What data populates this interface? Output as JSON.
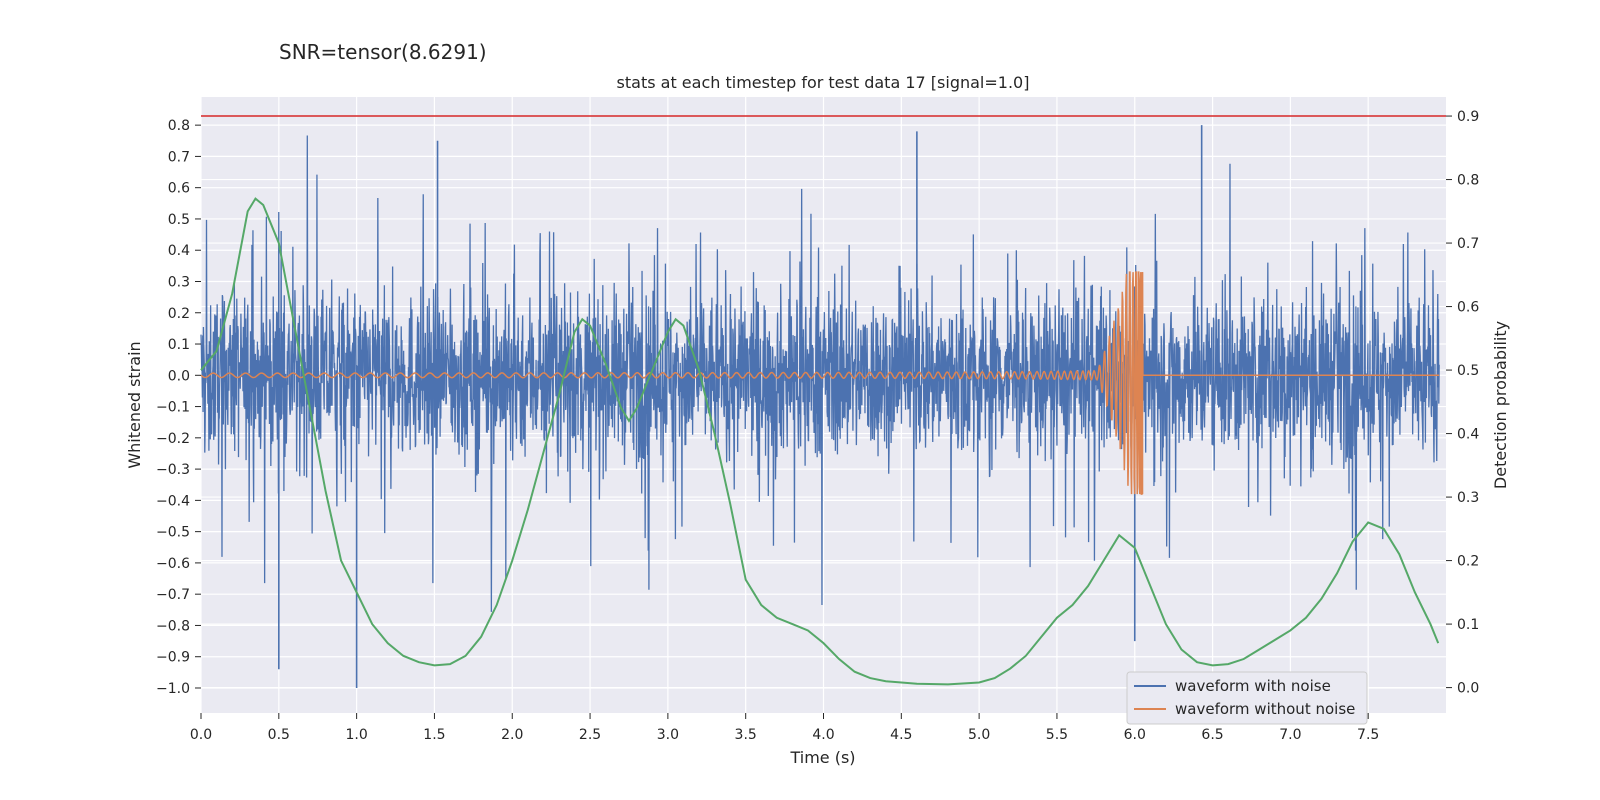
{
  "suptitle": "SNR=tensor(8.6291)",
  "chart_data": {
    "type": "line",
    "title": "stats at each timestep for test data 17 [signal=1.0]",
    "xlabel": "Time (s)",
    "ylabel_left": "Whitened strain",
    "ylabel_right": "Detection probability",
    "xlim": [
      0.0,
      8.0
    ],
    "ylim_left": [
      -1.08,
      0.89
    ],
    "ylim_right": [
      -0.04,
      0.93
    ],
    "x_ticks": [
      "0.0",
      "0.5",
      "1.0",
      "1.5",
      "2.0",
      "2.5",
      "3.0",
      "3.5",
      "4.0",
      "4.5",
      "5.0",
      "5.5",
      "6.0",
      "6.5",
      "7.0",
      "7.5"
    ],
    "y_left_ticks": [
      "0.8",
      "0.7",
      "0.6",
      "0.5",
      "0.4",
      "0.3",
      "0.2",
      "0.1",
      "0.0",
      "−0.1",
      "−0.2",
      "−0.3",
      "−0.4",
      "−0.5",
      "−0.6",
      "−0.7",
      "−0.8",
      "−0.9",
      "−1.0"
    ],
    "y_right_ticks": [
      "0.9",
      "0.8",
      "0.7",
      "0.6",
      "0.5",
      "0.4",
      "0.3",
      "0.2",
      "0.1",
      "0.0"
    ],
    "grid": true,
    "legend_position": "lower-right",
    "threshold": {
      "value": 0.9,
      "axis": "right",
      "color": "#d62728"
    },
    "series": [
      {
        "name": "waveform with noise",
        "color": "#4c72b0",
        "axis": "left",
        "description_only": false,
        "envelope": {
          "typical_amplitude": 0.4,
          "min": -1.0,
          "max": 0.8
        }
      },
      {
        "name": "waveform without noise",
        "color": "#dd8452",
        "axis": "left",
        "chirp": {
          "merger_time": 6.05,
          "peak": 0.33,
          "trough": -0.38
        }
      },
      {
        "name": "",
        "color": "#55a868",
        "axis": "right",
        "x": [
          0.0,
          0.1,
          0.2,
          0.3,
          0.35,
          0.4,
          0.5,
          0.6,
          0.7,
          0.8,
          0.9,
          1.0,
          1.1,
          1.2,
          1.3,
          1.4,
          1.5,
          1.6,
          1.7,
          1.8,
          1.9,
          2.0,
          2.1,
          2.2,
          2.3,
          2.4,
          2.45,
          2.5,
          2.6,
          2.7,
          2.75,
          2.8,
          2.9,
          3.0,
          3.05,
          3.1,
          3.2,
          3.3,
          3.4,
          3.5,
          3.6,
          3.7,
          3.8,
          3.9,
          4.0,
          4.1,
          4.2,
          4.3,
          4.4,
          4.6,
          4.8,
          5.0,
          5.1,
          5.2,
          5.3,
          5.4,
          5.5,
          5.6,
          5.7,
          5.8,
          5.9,
          6.0,
          6.1,
          6.2,
          6.3,
          6.4,
          6.5,
          6.6,
          6.7,
          6.8,
          6.9,
          7.0,
          7.1,
          7.2,
          7.3,
          7.4,
          7.5,
          7.6,
          7.7,
          7.8,
          7.9,
          7.95
        ],
        "y": [
          0.5,
          0.53,
          0.62,
          0.75,
          0.77,
          0.76,
          0.7,
          0.57,
          0.44,
          0.31,
          0.2,
          0.15,
          0.1,
          0.07,
          0.05,
          0.04,
          0.035,
          0.037,
          0.05,
          0.08,
          0.13,
          0.2,
          0.28,
          0.37,
          0.46,
          0.56,
          0.58,
          0.57,
          0.51,
          0.44,
          0.42,
          0.44,
          0.5,
          0.56,
          0.58,
          0.57,
          0.5,
          0.4,
          0.29,
          0.17,
          0.13,
          0.11,
          0.1,
          0.09,
          0.07,
          0.045,
          0.025,
          0.015,
          0.01,
          0.006,
          0.005,
          0.008,
          0.015,
          0.03,
          0.05,
          0.08,
          0.11,
          0.13,
          0.16,
          0.2,
          0.24,
          0.22,
          0.16,
          0.1,
          0.06,
          0.04,
          0.035,
          0.037,
          0.045,
          0.06,
          0.075,
          0.09,
          0.11,
          0.14,
          0.18,
          0.23,
          0.26,
          0.25,
          0.21,
          0.15,
          0.1,
          0.07
        ]
      }
    ]
  }
}
